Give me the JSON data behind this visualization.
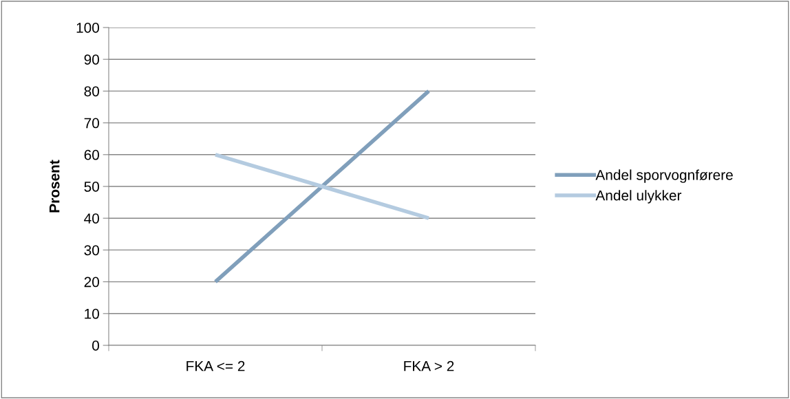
{
  "chart_data": {
    "type": "line",
    "ylabel": "Prosent",
    "categories": [
      "FKA <= 2",
      "FKA > 2"
    ],
    "series": [
      {
        "name": "Andel sporvognførere",
        "color": "#809fbb",
        "values": [
          20,
          80
        ]
      },
      {
        "name": "Andel ulykker",
        "color": "#b4cbe0",
        "values": [
          60,
          40
        ]
      }
    ],
    "ylim": [
      0,
      100
    ],
    "yticks": [
      0,
      10,
      20,
      30,
      40,
      50,
      60,
      70,
      80,
      90,
      100
    ],
    "grid": "y",
    "legend": "right",
    "marker": "none",
    "line_style": "solid"
  }
}
